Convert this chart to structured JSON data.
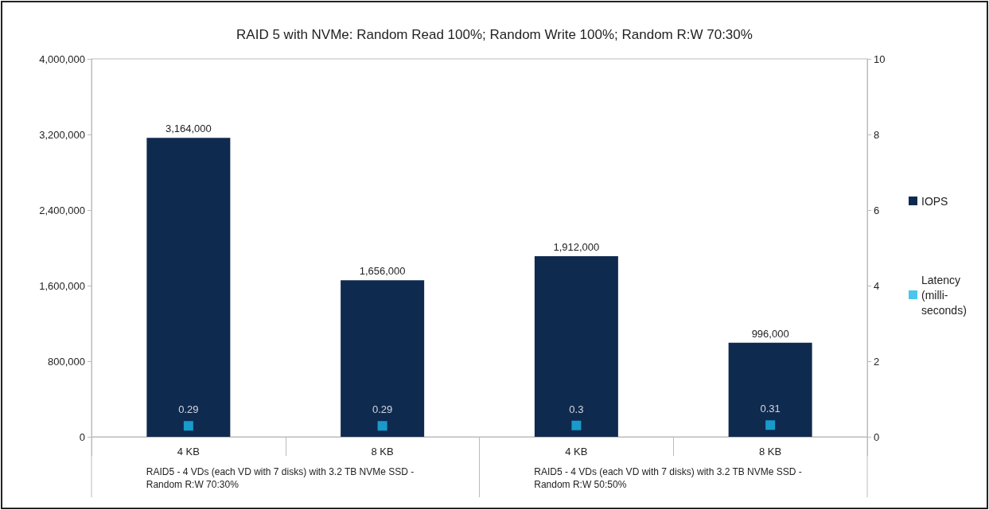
{
  "chart_data": {
    "type": "bar",
    "title": "RAID 5 with NVMe: Random Read 100%; Random Write 100%; Random R:W 70:30%",
    "categories": [
      "4 KB",
      "8 KB",
      "4 KB",
      "8 KB"
    ],
    "series": [
      {
        "name": "IOPS",
        "color": "#0f2a4f",
        "values": [
          3164000,
          1656000,
          1912000,
          996000
        ],
        "value_labels": [
          "3,164,000",
          "1,656,000",
          "1,912,000",
          "996,000"
        ]
      },
      {
        "name": "Latency (milli-seconds)",
        "type": "scatter",
        "axis": "y2",
        "color": "#1ab8e8",
        "values": [
          0.29,
          0.29,
          0.3,
          0.31
        ]
      }
    ],
    "annotations": [
      "RAID5 - 4 VDs (each VD with 7 disks) with 3.2 TB NVMe SSD - Random R:W 70:30%",
      "RAID5 - 4 VDs (each VD with 7 disks) with 3.2 TB NVMe SSD - Random R:W 50:50%"
    ],
    "ylim": [
      0,
      4000000
    ],
    "yticks": [
      0,
      {
        "value": 800000,
        "label": "800,000"
      },
      {
        "value": 1600000,
        "label": "1,600,000"
      },
      {
        "value": 2400000,
        "label": "2,400,000"
      },
      {
        "value": 3200000,
        "label": "3,200,000"
      },
      {
        "value": 4000000,
        "label": "4,000,000"
      }
    ],
    "y2lim": [
      0,
      10
    ],
    "y2ticks": [
      0,
      2,
      4,
      6,
      8,
      10
    ],
    "data_labels": true,
    "grid": false,
    "legend": "right",
    "marker": "square"
  }
}
